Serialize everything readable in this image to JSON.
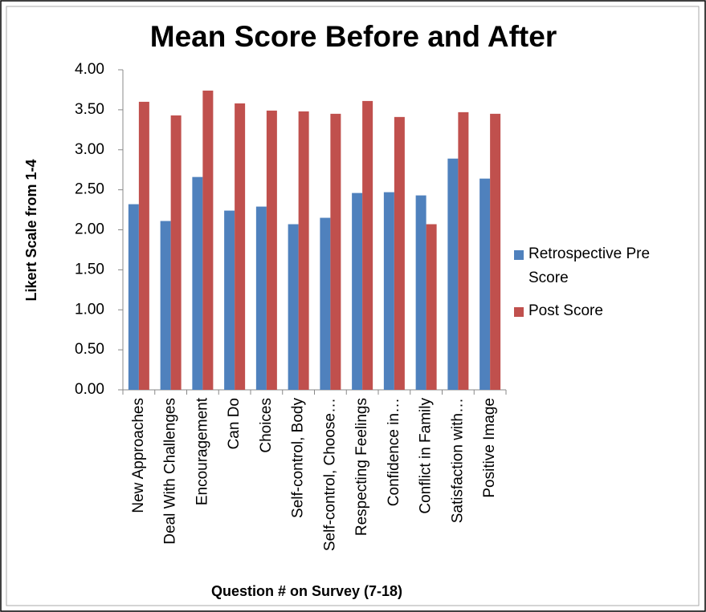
{
  "chart_data": {
    "type": "bar",
    "title": "Mean Score Before and After",
    "x_label": "Question # on Survey (7-18)",
    "y_label": "Likert Scale from 1-4",
    "categories": [
      "New Approaches",
      "Deal With Challenges",
      "Encouragement",
      "Can Do",
      "Choices",
      "Self-control, Body",
      "Self-control, Choose…",
      "Respecting Feelings",
      "Confidence in…",
      "Conflict in Family",
      "Satisfaction with…",
      "Positive Image"
    ],
    "series": [
      {
        "name": "Retrospective Pre Score",
        "color": "#4f81bd",
        "values": [
          2.32,
          2.11,
          2.66,
          2.24,
          2.29,
          2.07,
          2.15,
          2.46,
          2.47,
          2.43,
          2.89,
          2.64
        ]
      },
      {
        "name": "Post Score",
        "color": "#c0504d",
        "values": [
          3.6,
          3.43,
          3.74,
          3.58,
          3.49,
          3.48,
          3.45,
          3.61,
          3.41,
          2.07,
          3.47,
          3.45
        ]
      }
    ],
    "ylim": [
      0,
      4
    ],
    "yticks": [
      {
        "value": 0,
        "label": "0.00"
      },
      {
        "value": 0.5,
        "label": "0.50"
      },
      {
        "value": 1,
        "label": "1.00"
      },
      {
        "value": 1.5,
        "label": "1.50"
      },
      {
        "value": 2,
        "label": "2.00"
      },
      {
        "value": 2.5,
        "label": "2.50"
      },
      {
        "value": 3,
        "label": "3.00"
      },
      {
        "value": 3.5,
        "label": "3.50"
      },
      {
        "value": 4,
        "label": "4.00"
      }
    ],
    "grid": false,
    "legend": "right"
  }
}
